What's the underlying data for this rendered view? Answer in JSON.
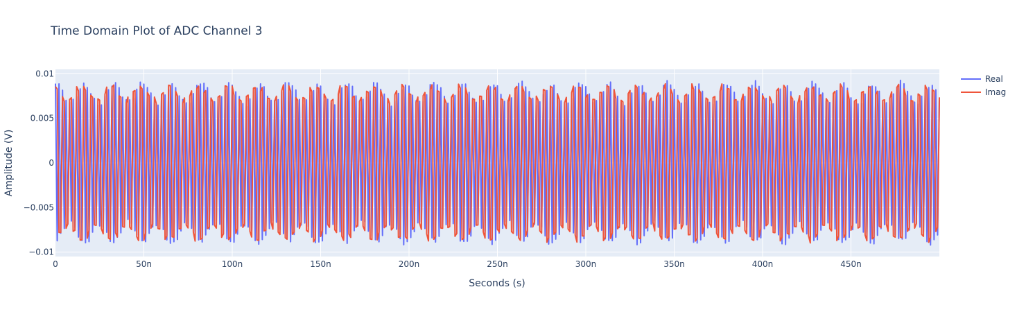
{
  "chart_data": {
    "type": "line",
    "title": "Time Domain Plot of ADC Channel 3",
    "xlabel": "Seconds (s)",
    "ylabel": "Amplitude (V)",
    "xlim": [
      0,
      500
    ],
    "x_unit_suffix": "n",
    "ylim": [
      -0.0105,
      0.0105
    ],
    "x_ticks": [
      0,
      50,
      100,
      150,
      200,
      250,
      300,
      350,
      400,
      450
    ],
    "x_tick_labels": [
      "0",
      "50n",
      "100n",
      "150n",
      "200n",
      "250n",
      "300n",
      "350n",
      "400n",
      "450n"
    ],
    "y_ticks": [
      -0.01,
      -0.005,
      0,
      0.005,
      0.01
    ],
    "y_tick_labels": [
      "−0.01",
      "−0.005",
      "0",
      "0.005",
      "0.01"
    ],
    "grid": true,
    "legend_position": "top-right",
    "sample_step": 1.0,
    "series": [
      {
        "name": "Real",
        "color": "#636efa",
        "carrier_period": 2.0,
        "envelope_base": 0.0078,
        "envelope_swing": 0.0011,
        "envelope_period": 16.5
      },
      {
        "name": "Imag",
        "color": "#ef553b",
        "carrier_period": 2.0,
        "envelope_base": 0.0078,
        "envelope_swing": 0.0008,
        "envelope_period": 16.5
      }
    ]
  },
  "colors": {
    "plot_bg": "#e5ecf6",
    "grid": "#ffffff",
    "text": "#2a3f5f"
  }
}
